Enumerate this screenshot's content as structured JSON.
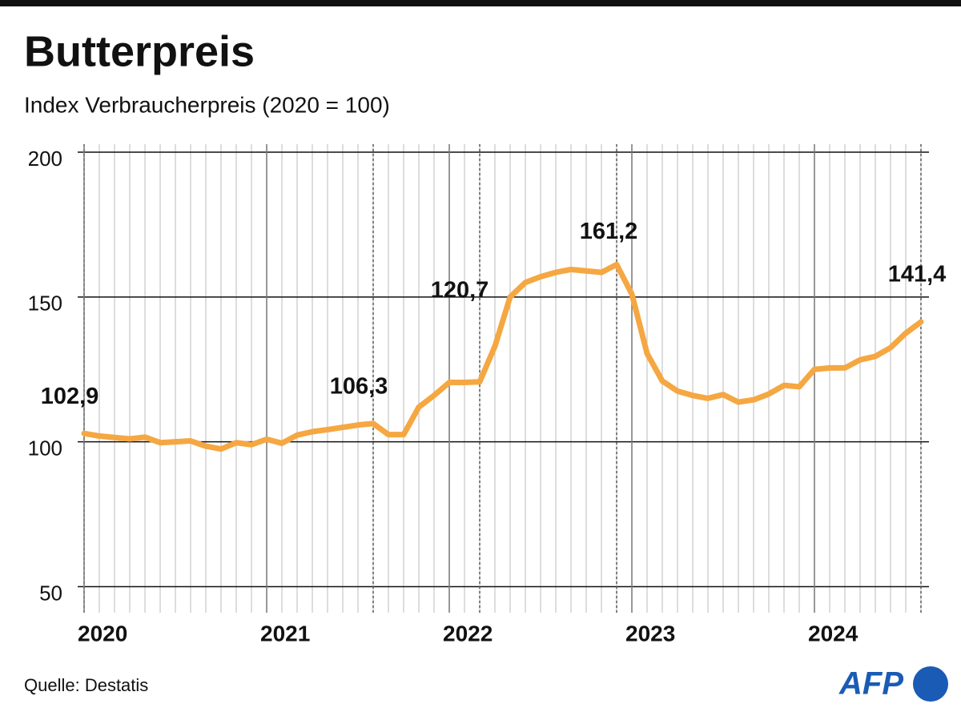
{
  "chart_data": {
    "type": "line",
    "title": "Butterpreis",
    "subtitle": "Index Verbraucherpreis (2020 = 100)",
    "source": "Quelle: Destatis",
    "logo": "AFP",
    "categories": [
      "2020",
      null,
      null,
      null,
      null,
      null,
      null,
      null,
      null,
      null,
      null,
      null,
      "2021",
      null,
      null,
      null,
      null,
      null,
      null,
      null,
      null,
      null,
      null,
      null,
      "2022",
      null,
      null,
      null,
      null,
      null,
      null,
      null,
      null,
      null,
      null,
      null,
      "2023",
      null,
      null,
      null,
      null,
      null,
      null,
      null,
      null,
      null,
      null,
      null,
      "2024",
      null,
      null,
      null,
      null,
      null,
      null,
      null
    ],
    "values": [
      102.9,
      102,
      101.5,
      101,
      101.6,
      99.7,
      100,
      100.3,
      98.5,
      97.5,
      99.7,
      99,
      100.9,
      99.5,
      102.3,
      103.5,
      104.2,
      105,
      105.8,
      106.3,
      102.5,
      102.5,
      112,
      116,
      120.5,
      120.5,
      120.7,
      133,
      150,
      155,
      157,
      158.5,
      159.5,
      159,
      158.5,
      161.2,
      151,
      130.5,
      121,
      117.5,
      116,
      115,
      116.3,
      113.7,
      114.5,
      116.5,
      119.5,
      119,
      125,
      125.5,
      125.5,
      128.3,
      129.5,
      132.5,
      137.5,
      141.4
    ],
    "value_labels": [
      "102,9",
      null,
      null,
      null,
      null,
      null,
      null,
      null,
      null,
      null,
      null,
      null,
      null,
      null,
      null,
      null,
      null,
      null,
      null,
      "106,3",
      null,
      null,
      null,
      null,
      null,
      null,
      "120,7",
      null,
      null,
      null,
      null,
      null,
      null,
      null,
      null,
      "161,2",
      null,
      null,
      null,
      null,
      null,
      null,
      null,
      null,
      null,
      null,
      null,
      null,
      null,
      null,
      null,
      null,
      null,
      null,
      null,
      "141,4"
    ],
    "color": "#f5a742",
    "ylim": [
      41,
      200
    ],
    "yticks": [
      50,
      100,
      150,
      200
    ],
    "grid": true
  }
}
